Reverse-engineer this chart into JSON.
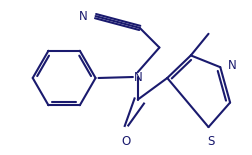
{
  "bg_color": "#ffffff",
  "line_color": "#1a1a6e",
  "line_width": 1.5,
  "font_size": 8.5,
  "figsize": [
    2.53,
    1.55
  ],
  "dpi": 100,
  "xlim": [
    0,
    253
  ],
  "ylim": [
    0,
    155
  ]
}
